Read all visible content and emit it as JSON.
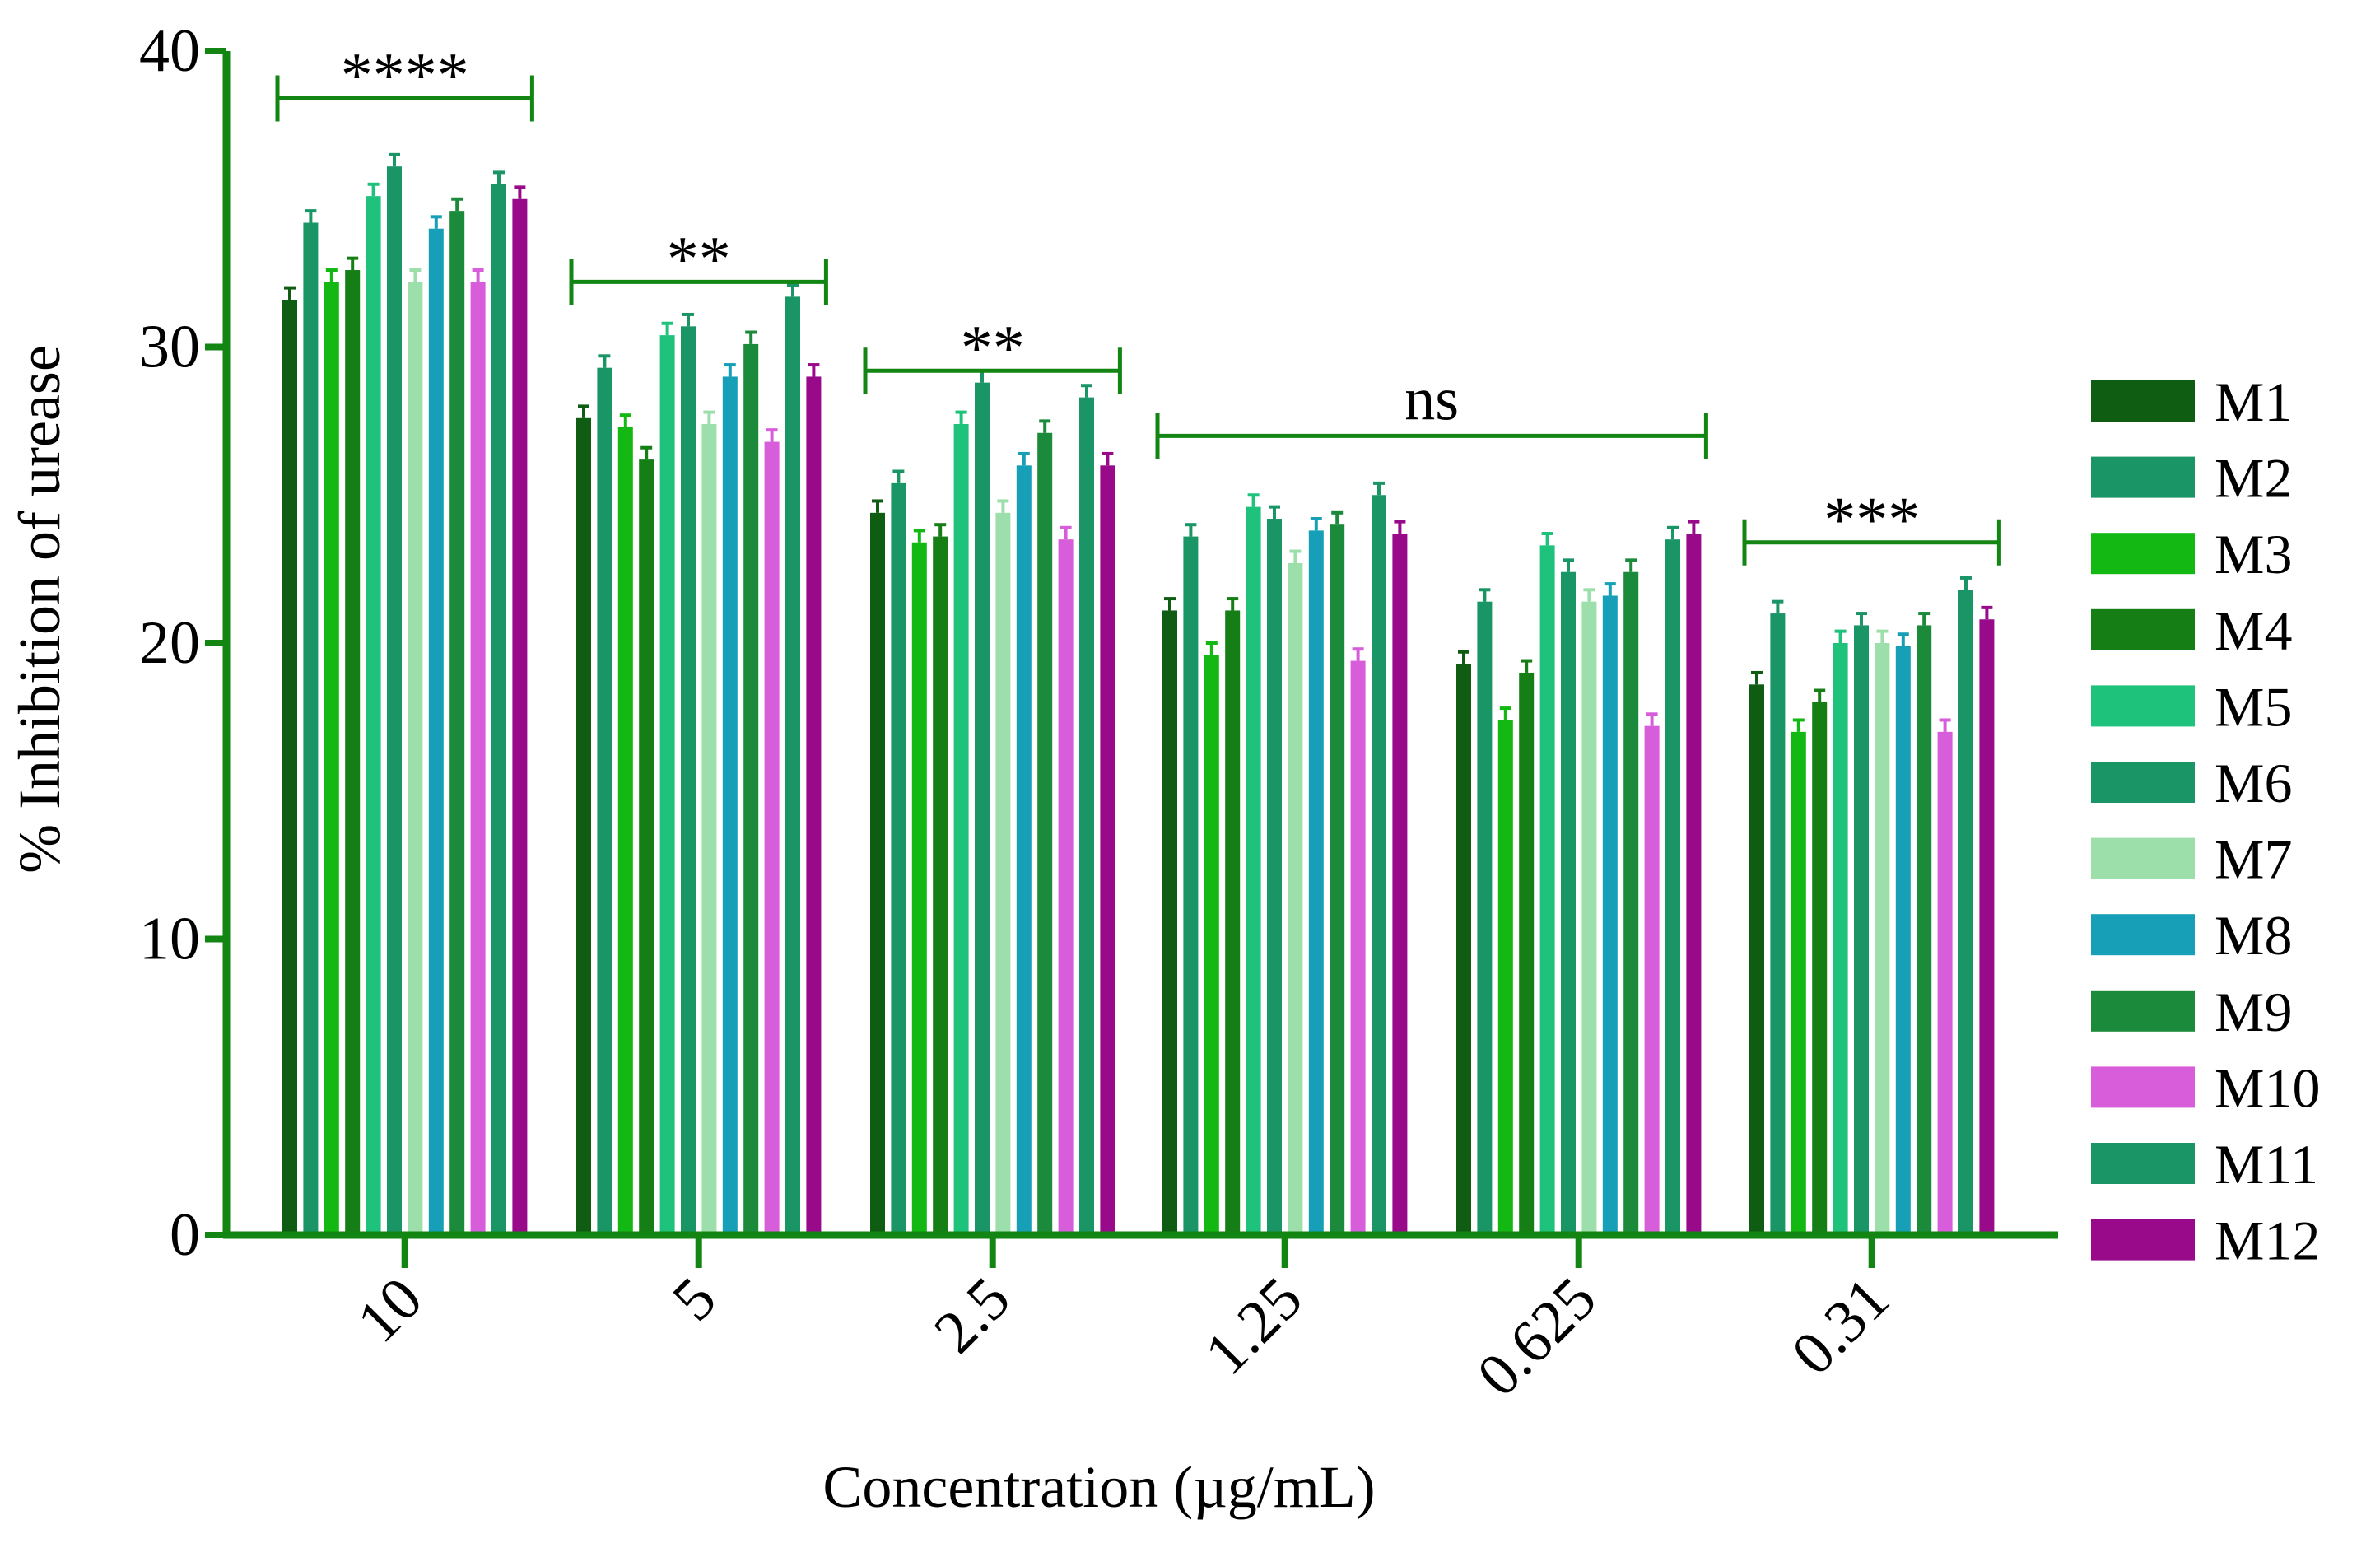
{
  "chart_data": {
    "type": "bar",
    "title": "",
    "xlabel": "Concentration (µg/mL)",
    "ylabel": "% Inhibition of urease",
    "ylim": [
      0,
      40
    ],
    "yticks": [
      "0",
      "10",
      "20",
      "30",
      "40"
    ],
    "categories": [
      "10",
      "5",
      "2.5",
      "1.25",
      "0.625",
      "0.31"
    ],
    "error_bar": 0.4,
    "legend_position": "right",
    "series": [
      {
        "name": "M1",
        "color": "#0f5d12",
        "values": [
          31.6,
          27.6,
          24.4,
          21.1,
          19.3,
          18.6
        ]
      },
      {
        "name": "M2",
        "color": "#1a9566",
        "values": [
          34.2,
          29.3,
          25.4,
          23.6,
          21.4,
          21.0
        ]
      },
      {
        "name": "M3",
        "color": "#14b812",
        "values": [
          32.2,
          27.3,
          23.4,
          19.6,
          17.4,
          17.0
        ]
      },
      {
        "name": "M4",
        "color": "#157e15",
        "values": [
          32.6,
          26.2,
          23.6,
          21.1,
          19.0,
          18.0
        ]
      },
      {
        "name": "M5",
        "color": "#1ec27b",
        "values": [
          35.1,
          30.4,
          27.4,
          24.6,
          23.3,
          20.0
        ]
      },
      {
        "name": "M6",
        "color": "#1a9566",
        "values": [
          36.1,
          30.7,
          28.8,
          24.2,
          22.4,
          20.6
        ]
      },
      {
        "name": "M7",
        "color": "#9cdfab",
        "values": [
          32.2,
          27.4,
          24.4,
          22.7,
          21.4,
          20.0
        ]
      },
      {
        "name": "M8",
        "color": "#179fb7",
        "values": [
          34.0,
          29.0,
          26.0,
          23.8,
          21.6,
          19.9
        ]
      },
      {
        "name": "M9",
        "color": "#1b8a3a",
        "values": [
          34.6,
          30.1,
          27.1,
          24.0,
          22.4,
          20.6
        ]
      },
      {
        "name": "M10",
        "color": "#d75ddb",
        "values": [
          32.2,
          26.8,
          23.5,
          19.4,
          17.2,
          17.0
        ]
      },
      {
        "name": "M11",
        "color": "#1a9566",
        "values": [
          35.5,
          31.7,
          28.3,
          25.0,
          23.5,
          21.8
        ]
      },
      {
        "name": "M12",
        "color": "#980a8a",
        "values": [
          35.0,
          29.0,
          26.0,
          23.7,
          23.7,
          20.8
        ]
      }
    ],
    "significance": [
      {
        "label": "****",
        "from_category": 0,
        "to_category": 0,
        "y": 38.4
      },
      {
        "label": "**",
        "from_category": 1,
        "to_category": 1,
        "y": 32.2
      },
      {
        "label": "**",
        "from_category": 2,
        "to_category": 2,
        "y": 29.2
      },
      {
        "label": "ns",
        "from_category": 3,
        "to_category": 4,
        "y": 27.0
      },
      {
        "label": "***",
        "from_category": 5,
        "to_category": 5,
        "y": 23.4
      }
    ],
    "axis_color": "#138513"
  }
}
